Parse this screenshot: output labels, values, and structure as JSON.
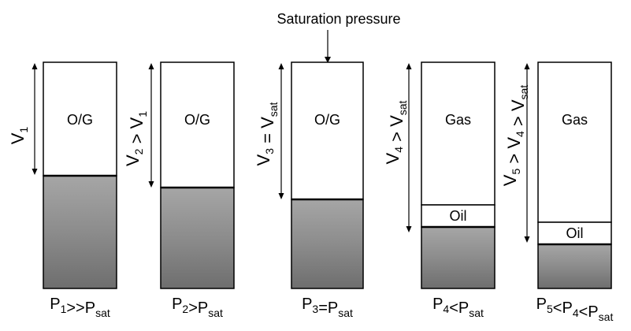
{
  "title_annotation": "Saturation pressure",
  "cells": [
    {
      "content_label": "O/G",
      "oil_label": "",
      "pressure_label": {
        "main": "P",
        "sub": "1",
        "rest": ">>P",
        "rest_sub": "sat"
      },
      "volume_label": {
        "main": "V",
        "sub": "1",
        "tail": ""
      }
    },
    {
      "content_label": "O/G",
      "oil_label": "",
      "pressure_label": {
        "main": "P",
        "sub": "2",
        "rest": ">P",
        "rest_sub": "sat"
      },
      "volume_label": {
        "main": "V",
        "sub": "2",
        "tail": " > V",
        "tail_sub": "1"
      }
    },
    {
      "content_label": "O/G",
      "oil_label": "",
      "pressure_label": {
        "main": "P",
        "sub": "3",
        "rest": "=P",
        "rest_sub": "sat"
      },
      "volume_label": {
        "main": "V",
        "sub": "3",
        "tail": " = V",
        "tail_sub": "sat"
      }
    },
    {
      "content_label": "Gas",
      "oil_label": "Oil",
      "pressure_label": {
        "main": "P",
        "sub": "4",
        "rest": "<P",
        "rest_sub": "sat"
      },
      "volume_label": {
        "main": "V",
        "sub": "4",
        "tail": " > V",
        "tail_sub": "sat"
      }
    },
    {
      "content_label": "Gas",
      "oil_label": "Oil",
      "pressure_label": {
        "main": "P",
        "sub": "5",
        "rest": "<P",
        "rest_sub": "4",
        "rest2": "<P",
        "rest2_sub": "sat"
      },
      "volume_label": {
        "main": "V",
        "sub": "5",
        "tail": " > V",
        "tail_sub": "4",
        "tail2": " > V",
        "tail2_sub": "sat"
      }
    }
  ],
  "colors": {
    "gas_fill": "#ffffff",
    "oil_fill": "#ffffff",
    "liquid_top": "#a6a6a6",
    "liquid_mid": "#8c8c8c",
    "liquid_bottom": "#6e6e6e",
    "outline": "#000000",
    "spell_underline": "#ff0000"
  }
}
